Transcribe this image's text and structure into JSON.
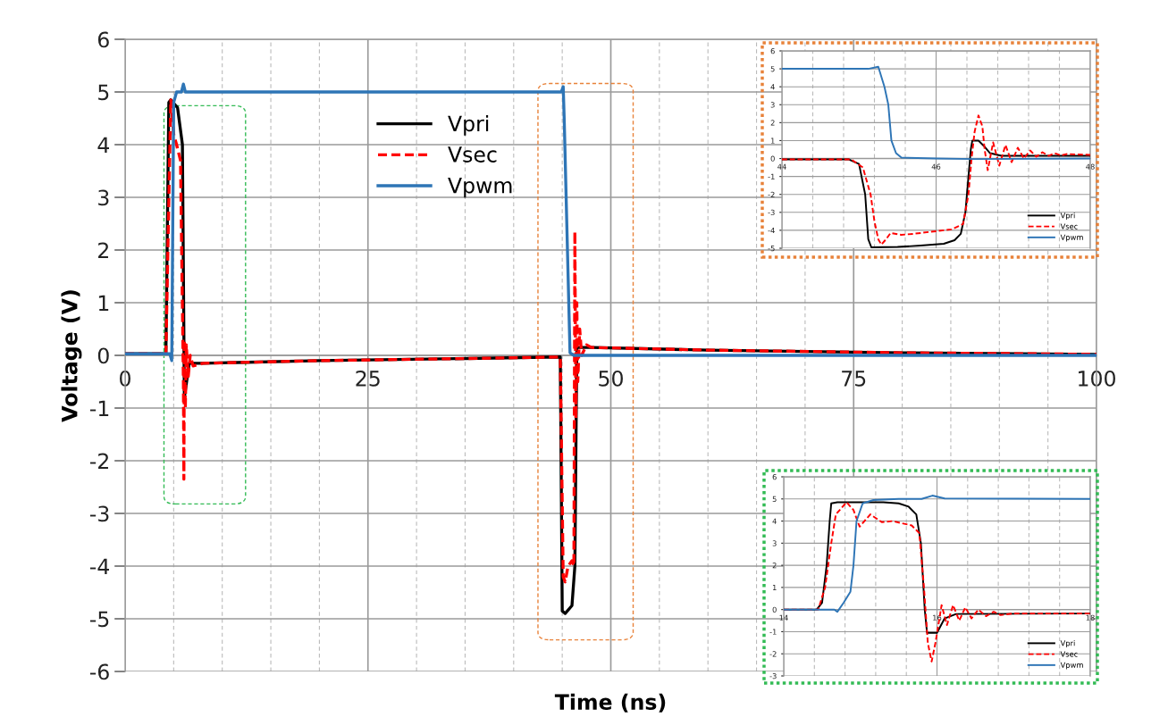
{
  "chart_data": [
    {
      "type": "line",
      "xlabel": "Time (ns)",
      "ylabel": "Voltage (V)",
      "xlim": [
        0,
        100
      ],
      "ylim": [
        -6,
        6
      ],
      "xticks": [
        0,
        {
          "value": 5,
          "label": null
        },
        {
          "value": 10,
          "label": null
        },
        {
          "value": 15,
          "label": null
        },
        {
          "value": 20,
          "label": null
        },
        25,
        {
          "value": 30,
          "label": null
        },
        {
          "value": 35,
          "label": null
        },
        {
          "value": 40,
          "label": null
        },
        {
          "value": 45,
          "label": null
        },
        50,
        {
          "value": 55,
          "label": null
        },
        {
          "value": 60,
          "label": null
        },
        {
          "value": 65,
          "label": null
        },
        {
          "value": 70,
          "label": null
        },
        75,
        {
          "value": 80,
          "label": null
        },
        {
          "value": 85,
          "label": null
        },
        {
          "value": 90,
          "label": null
        },
        {
          "value": 95,
          "label": null
        },
        100
      ],
      "yticks": [
        -6,
        -5,
        -4,
        -3,
        -2,
        -1,
        0,
        1,
        2,
        3,
        4,
        5,
        6
      ],
      "grid": true,
      "legend": "top",
      "marker": "none",
      "series": [
        {
          "name": "Vpri",
          "color": "#000000",
          "line_style": "solid",
          "x": [
            0,
            4.2,
            4.5,
            4.7,
            5.4,
            5.9,
            6.1,
            6.6,
            8,
            20,
            35,
            44.8,
            45.0,
            45.3,
            46.0,
            46.3,
            46.5,
            48,
            60,
            80,
            100
          ],
          "values": [
            0.03,
            0.03,
            4.8,
            4.85,
            4.7,
            4.0,
            -0.8,
            -0.15,
            -0.15,
            -0.1,
            -0.06,
            -0.03,
            -4.85,
            -4.9,
            -4.75,
            -4.0,
            0.15,
            0.15,
            0.1,
            0.05,
            0.02
          ]
        },
        {
          "name": "Vsec",
          "color": "#ff0000",
          "line_style": "dashed",
          "x": [
            0,
            4.2,
            4.7,
            5.0,
            5.3,
            5.7,
            6.0,
            6.05,
            6.1,
            6.2,
            6.3,
            6.5,
            6.7,
            7,
            8,
            20,
            35,
            44.8,
            45.1,
            45.3,
            45.6,
            46.0,
            46.2,
            46.3,
            46.4,
            46.5,
            46.6,
            46.8,
            47.0,
            47.5,
            48,
            60,
            80,
            100
          ],
          "values": [
            0.03,
            0.03,
            4.85,
            4.2,
            4.0,
            3.7,
            -0.5,
            -2.35,
            0.3,
            -1.0,
            0.2,
            -0.4,
            0,
            -0.2,
            -0.15,
            -0.1,
            -0.06,
            -0.03,
            -4.2,
            -4.3,
            -4.0,
            -3.9,
            -4.0,
            2.35,
            -1.2,
            1.0,
            -0.5,
            0.5,
            0,
            0.2,
            0.15,
            0.1,
            0.05,
            0.02
          ]
        },
        {
          "name": "Vpwm",
          "color": "#2e75b6",
          "line_style": "solid",
          "x": [
            0,
            4.6,
            4.8,
            5.0,
            5.3,
            5.8,
            6.0,
            6.2,
            44.9,
            45.1,
            45.2,
            45.8,
            46.2,
            100
          ],
          "values": [
            0.03,
            0.03,
            -0.1,
            4.8,
            5.0,
            5.0,
            5.15,
            5.0,
            5.0,
            5.1,
            4.5,
            0.05,
            0,
            0
          ]
        }
      ]
    },
    {
      "type": "line",
      "xlim": [
        44,
        48
      ],
      "ylim": [
        -5,
        6
      ],
      "xticks": [
        44,
        {
          "value": 44.4,
          "label": null
        },
        {
          "value": 44.8,
          "label": null
        },
        {
          "value": 45.2,
          "label": null
        },
        {
          "value": 45.6,
          "label": null
        },
        46,
        {
          "value": 46.4,
          "label": null
        },
        {
          "value": 46.8,
          "label": null
        },
        {
          "value": 47.2,
          "label": null
        },
        {
          "value": 47.6,
          "label": null
        },
        48
      ],
      "yticks": [
        -5,
        -4,
        -3,
        -2,
        -1,
        0,
        1,
        2,
        3,
        4,
        5,
        6
      ],
      "grid": true,
      "legend": "bottom right",
      "marker": "none",
      "series": [
        {
          "name": "Vpri",
          "color": "#000000",
          "line_style": "solid",
          "x": [
            44,
            44.87,
            45.0,
            45.08,
            45.12,
            45.16,
            45.5,
            45.8,
            46.1,
            46.24,
            46.32,
            46.38,
            46.42,
            46.45,
            46.47,
            46.55,
            46.62,
            46.7,
            46.85,
            48
          ],
          "values": [
            -0.05,
            -0.05,
            -0.3,
            -2,
            -4.5,
            -4.95,
            -4.93,
            -4.85,
            -4.75,
            -4.55,
            -4.2,
            -3,
            -1,
            0.5,
            1.0,
            1.0,
            0.7,
            0.3,
            0.15,
            0.15
          ]
        },
        {
          "name": "Vsec",
          "color": "#ff0000",
          "line_style": "dashed",
          "x": [
            44,
            44.9,
            45.05,
            45.15,
            45.2,
            45.25,
            45.29,
            45.35,
            45.41,
            45.55,
            45.7,
            46.0,
            46.2,
            46.35,
            46.42,
            46.46,
            46.5,
            46.55,
            46.6,
            46.63,
            46.67,
            46.74,
            46.82,
            46.9,
            46.98,
            47.06,
            47.14,
            47.22,
            47.3,
            47.38,
            47.46,
            47.54,
            47.62,
            47.7,
            48
          ],
          "values": [
            -0.05,
            -0.05,
            -0.5,
            -2,
            -3.5,
            -4.5,
            -4.8,
            -4.5,
            -4.15,
            -4.25,
            -4.2,
            -4.05,
            -3.95,
            -3.65,
            -2,
            0,
            1.5,
            2.4,
            1.8,
            0.5,
            -0.65,
            0.9,
            -0.4,
            0.75,
            -0.2,
            0.6,
            0,
            0.45,
            0.1,
            0.35,
            0.15,
            0.3,
            0.17,
            0.25,
            0.2
          ]
        },
        {
          "name": "Vpwm",
          "color": "#2e75b6",
          "line_style": "solid",
          "x": [
            44,
            45.12,
            45.25,
            45.33,
            45.38,
            45.4,
            45.42,
            45.48,
            45.55,
            46.0,
            46.5,
            48
          ],
          "values": [
            5,
            5,
            5.12,
            4,
            3,
            2,
            1,
            0.3,
            0.05,
            0,
            -0.03,
            0
          ]
        }
      ]
    },
    {
      "type": "line",
      "xlim": [
        14,
        18
      ],
      "ylim": [
        -3,
        6
      ],
      "xticks": [
        14,
        {
          "value": 14.4,
          "label": null
        },
        {
          "value": 14.8,
          "label": null
        },
        {
          "value": 15.2,
          "label": null
        },
        {
          "value": 15.6,
          "label": null
        },
        16,
        {
          "value": 16.4,
          "label": null
        },
        {
          "value": 16.8,
          "label": null
        },
        {
          "value": 17.2,
          "label": null
        },
        {
          "value": 17.6,
          "label": null
        },
        18
      ],
      "yticks": [
        -3,
        -2,
        -1,
        0,
        1,
        2,
        3,
        4,
        5,
        6
      ],
      "grid": true,
      "legend": "bottom right",
      "marker": "none",
      "series": [
        {
          "name": "Vpri",
          "color": "#000000",
          "line_style": "solid",
          "x": [
            14,
            14.43,
            14.5,
            14.56,
            14.6,
            14.62,
            14.7,
            15.3,
            15.5,
            15.63,
            15.73,
            15.79,
            15.84,
            15.87,
            16.0,
            16.1,
            16.25,
            18
          ],
          "values": [
            0,
            0,
            0.3,
            2,
            4,
            4.8,
            4.85,
            4.85,
            4.8,
            4.65,
            4.3,
            3,
            0,
            -1.05,
            -1.05,
            -0.4,
            -0.2,
            -0.18
          ]
        },
        {
          "name": "Vsec",
          "color": "#ff0000",
          "line_style": "dashed",
          "x": [
            14,
            14.45,
            14.54,
            14.62,
            14.68,
            14.82,
            14.91,
            14.99,
            15.13,
            15.28,
            15.42,
            15.67,
            15.77,
            15.83,
            15.88,
            15.93,
            15.98,
            16.06,
            16.13,
            16.21,
            16.29,
            16.37,
            16.45,
            16.54,
            16.64,
            16.74,
            16.83,
            16.99,
            18
          ],
          "values": [
            0,
            0,
            1,
            3,
            4.3,
            4.85,
            4.5,
            3.75,
            4.3,
            3.95,
            4.0,
            3.8,
            3.45,
            1,
            -1.5,
            -2.35,
            -1.5,
            0.2,
            -0.7,
            0.2,
            -0.5,
            0.1,
            -0.4,
            0.0,
            -0.3,
            -0.1,
            -0.25,
            -0.18,
            -0.18
          ]
        },
        {
          "name": "Vpwm",
          "color": "#2e75b6",
          "line_style": "solid",
          "x": [
            14,
            14.66,
            14.7,
            14.78,
            14.87,
            14.91,
            14.95,
            15.03,
            15.17,
            15.5,
            15.8,
            15.94,
            16.1,
            18
          ],
          "values": [
            0,
            0,
            -0.1,
            0.3,
            0.8,
            2,
            4,
            4.8,
            4.95,
            5.0,
            5.0,
            5.15,
            5.02,
            5.0
          ]
        }
      ]
    }
  ]
}
